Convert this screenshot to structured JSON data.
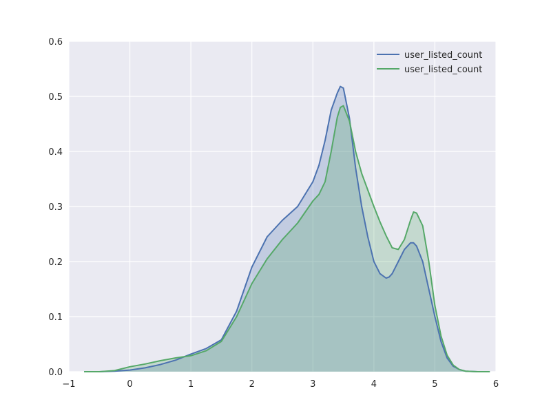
{
  "chart_data": {
    "type": "area",
    "xlim": [
      -1,
      6
    ],
    "ylim": [
      0,
      0.6
    ],
    "x_ticks": [
      -1,
      0,
      1,
      2,
      3,
      4,
      5,
      6
    ],
    "y_ticks": [
      0.0,
      0.1,
      0.2,
      0.3,
      0.4,
      0.5,
      0.6
    ],
    "x_tick_labels": [
      "−1",
      "0",
      "1",
      "2",
      "3",
      "4",
      "5",
      "6"
    ],
    "y_tick_labels": [
      "0.0",
      "0.1",
      "0.2",
      "0.3",
      "0.4",
      "0.5",
      "0.6"
    ],
    "grid": true,
    "legend_position": "top-right",
    "background_color": "#EAEAF2",
    "series": [
      {
        "name": "user_listed_count",
        "color": "#4C72B0",
        "x": [
          -0.75,
          -0.5,
          -0.25,
          0.0,
          0.25,
          0.5,
          0.75,
          1.0,
          1.25,
          1.5,
          1.75,
          2.0,
          2.25,
          2.5,
          2.75,
          3.0,
          3.1,
          3.2,
          3.3,
          3.4,
          3.45,
          3.5,
          3.6,
          3.7,
          3.8,
          3.9,
          4.0,
          4.1,
          4.2,
          4.25,
          4.3,
          4.4,
          4.5,
          4.6,
          4.65,
          4.7,
          4.8,
          4.9,
          5.0,
          5.1,
          5.2,
          5.3,
          5.4,
          5.5,
          5.7,
          5.9
        ],
        "y": [
          0.0,
          0.0,
          0.001,
          0.003,
          0.007,
          0.013,
          0.021,
          0.032,
          0.042,
          0.058,
          0.11,
          0.19,
          0.245,
          0.275,
          0.3,
          0.345,
          0.375,
          0.42,
          0.475,
          0.506,
          0.518,
          0.515,
          0.46,
          0.37,
          0.3,
          0.245,
          0.2,
          0.178,
          0.17,
          0.172,
          0.178,
          0.2,
          0.222,
          0.234,
          0.234,
          0.228,
          0.2,
          0.15,
          0.1,
          0.055,
          0.025,
          0.01,
          0.004,
          0.001,
          0.0,
          0.0
        ]
      },
      {
        "name": "user_listed_count",
        "color": "#55A868",
        "x": [
          -0.75,
          -0.5,
          -0.25,
          0.0,
          0.25,
          0.5,
          0.75,
          1.0,
          1.25,
          1.5,
          1.75,
          2.0,
          2.25,
          2.5,
          2.75,
          3.0,
          3.1,
          3.2,
          3.3,
          3.4,
          3.45,
          3.5,
          3.6,
          3.7,
          3.8,
          3.9,
          4.0,
          4.1,
          4.2,
          4.3,
          4.4,
          4.5,
          4.6,
          4.65,
          4.7,
          4.8,
          4.9,
          5.0,
          5.1,
          5.2,
          5.3,
          5.4,
          5.5,
          5.7,
          5.9
        ],
        "y": [
          0.0,
          0.0,
          0.002,
          0.009,
          0.014,
          0.02,
          0.025,
          0.029,
          0.038,
          0.055,
          0.1,
          0.16,
          0.205,
          0.24,
          0.27,
          0.31,
          0.322,
          0.345,
          0.4,
          0.462,
          0.48,
          0.483,
          0.455,
          0.4,
          0.36,
          0.33,
          0.3,
          0.272,
          0.247,
          0.225,
          0.222,
          0.24,
          0.275,
          0.29,
          0.288,
          0.265,
          0.2,
          0.12,
          0.065,
          0.03,
          0.012,
          0.004,
          0.001,
          0.0,
          0.0
        ]
      }
    ]
  }
}
